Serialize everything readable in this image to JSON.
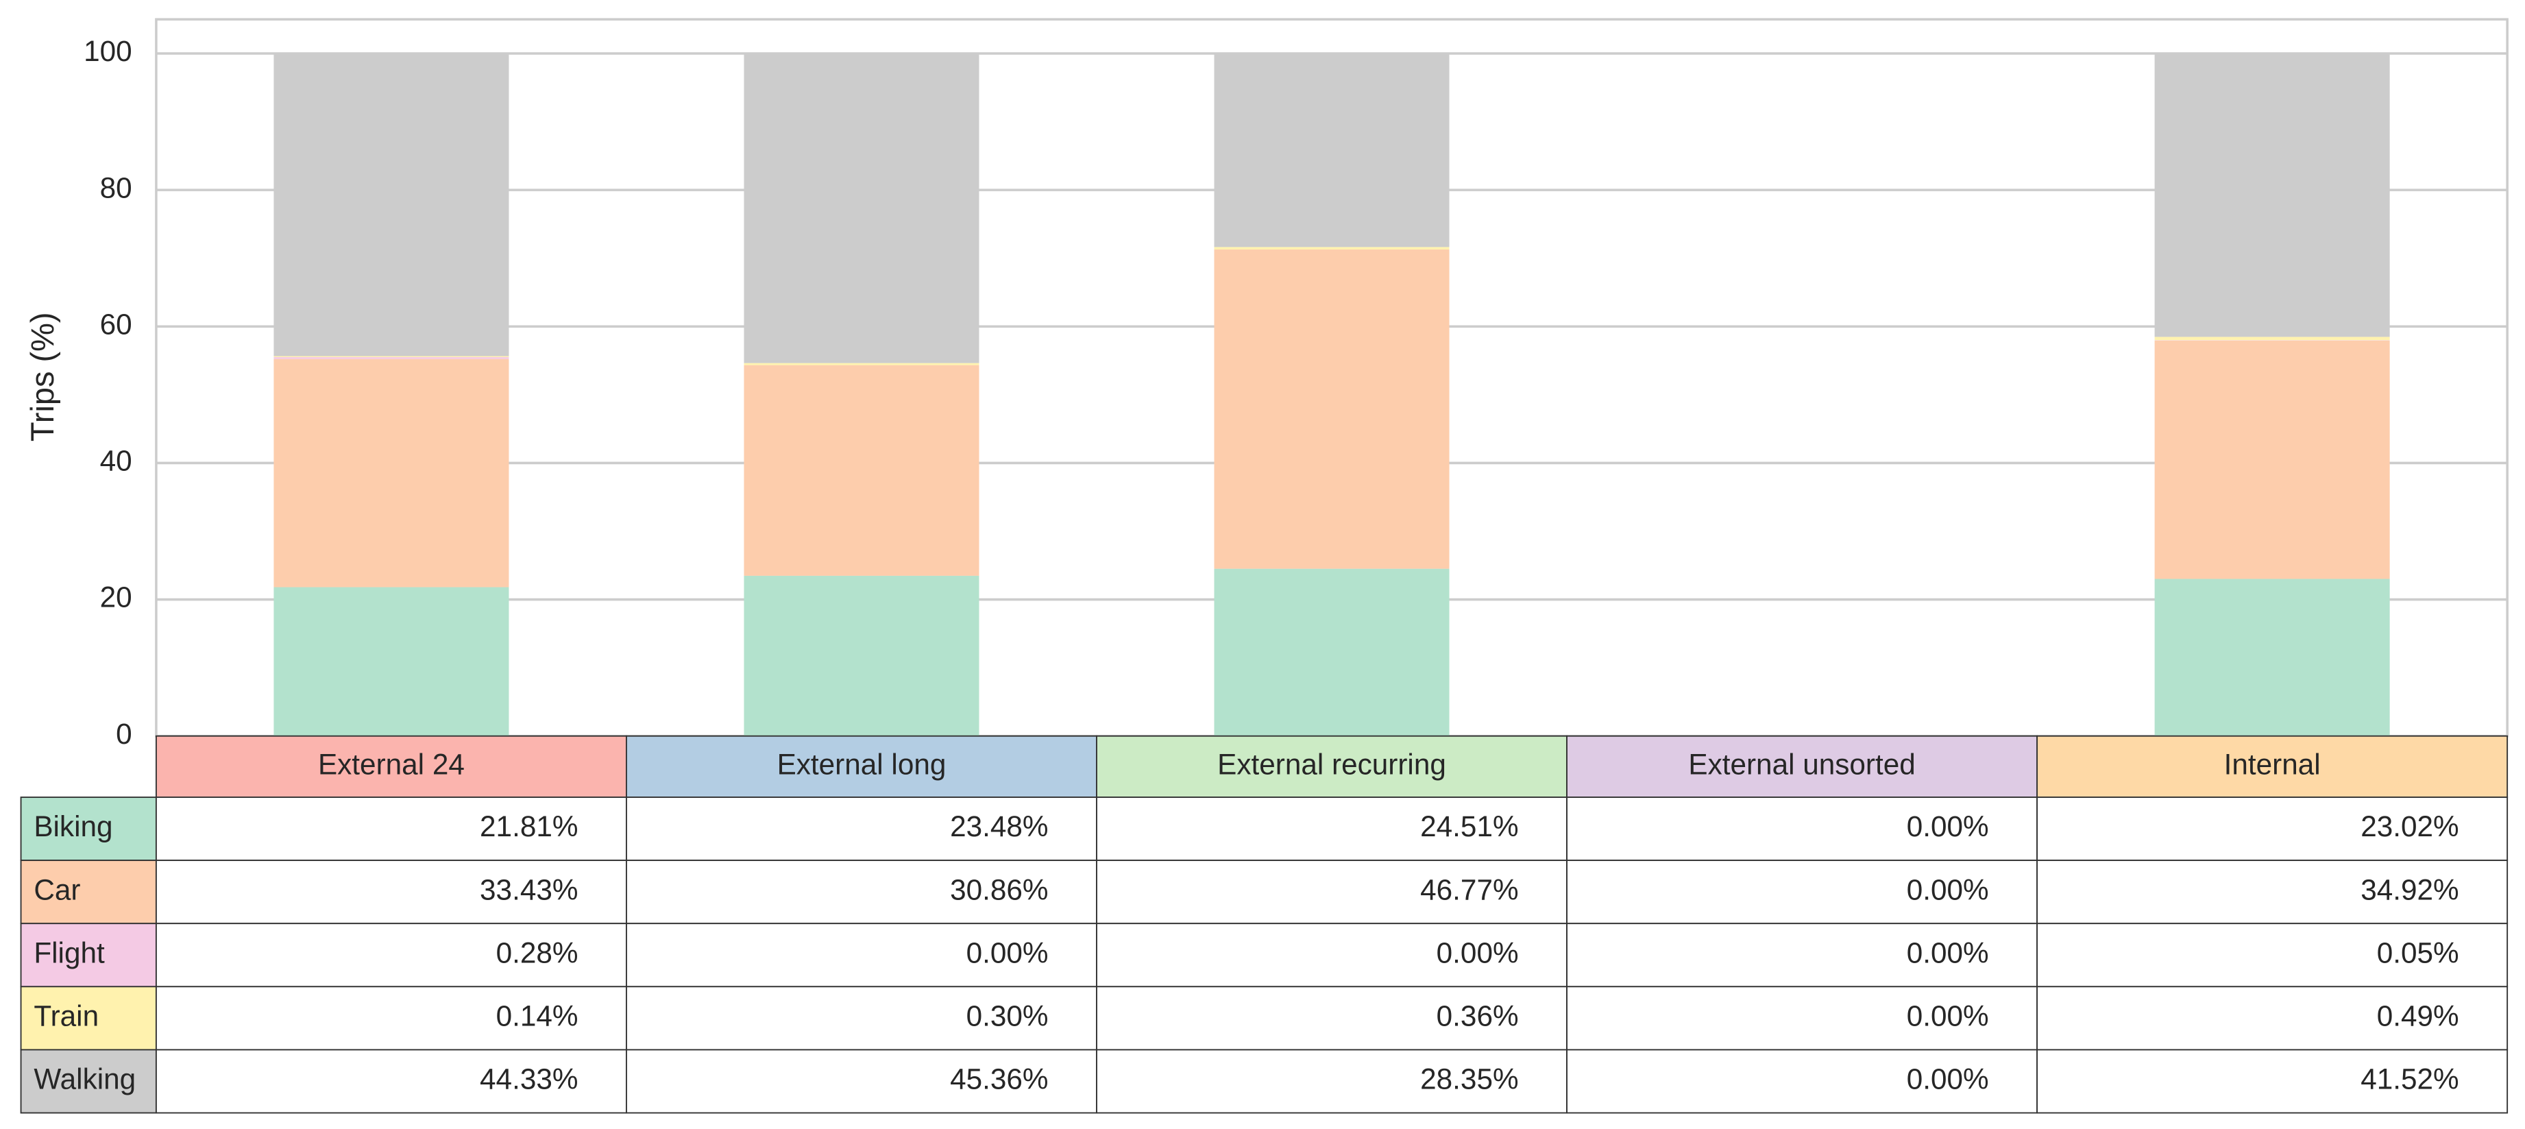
{
  "chart_data": {
    "type": "bar",
    "stacked": true,
    "y_label": "Trips (%)",
    "ylim": [
      0,
      105
    ],
    "yticks": [
      0,
      20,
      40,
      60,
      80,
      100
    ],
    "grid": true,
    "categories": [
      "External 24",
      "External long",
      "External recurring",
      "External unsorted",
      "Internal"
    ],
    "category_colors": [
      "#fbb4ae",
      "#b3cde3",
      "#ccebc5",
      "#decbe4",
      "#fed9a6"
    ],
    "series": [
      {
        "name": "Biking",
        "color": "#b3e2cd",
        "values": [
          21.81,
          23.48,
          24.51,
          0.0,
          23.02
        ],
        "value_labels": [
          "21.81%",
          "23.48%",
          "24.51%",
          "0.00%",
          "23.02%"
        ]
      },
      {
        "name": "Car",
        "color": "#fdcdac",
        "values": [
          33.43,
          30.86,
          46.77,
          0.0,
          34.92
        ],
        "value_labels": [
          "33.43%",
          "30.86%",
          "46.77%",
          "0.00%",
          "34.92%"
        ]
      },
      {
        "name": "Flight",
        "color": "#f4cae4",
        "values": [
          0.28,
          0.0,
          0.0,
          0.0,
          0.05
        ],
        "value_labels": [
          "0.28%",
          "0.00%",
          "0.00%",
          "0.00%",
          "0.05%"
        ]
      },
      {
        "name": "Train",
        "color": "#fff2ae",
        "values": [
          0.14,
          0.3,
          0.36,
          0.0,
          0.49
        ],
        "value_labels": [
          "0.14%",
          "0.30%",
          "0.36%",
          "0.00%",
          "0.49%"
        ]
      },
      {
        "name": "Walking",
        "color": "#cccccc",
        "values": [
          44.33,
          45.36,
          28.35,
          0.0,
          41.52
        ],
        "value_labels": [
          "44.33%",
          "45.36%",
          "28.35%",
          "0.00%",
          "41.52%"
        ]
      }
    ]
  }
}
